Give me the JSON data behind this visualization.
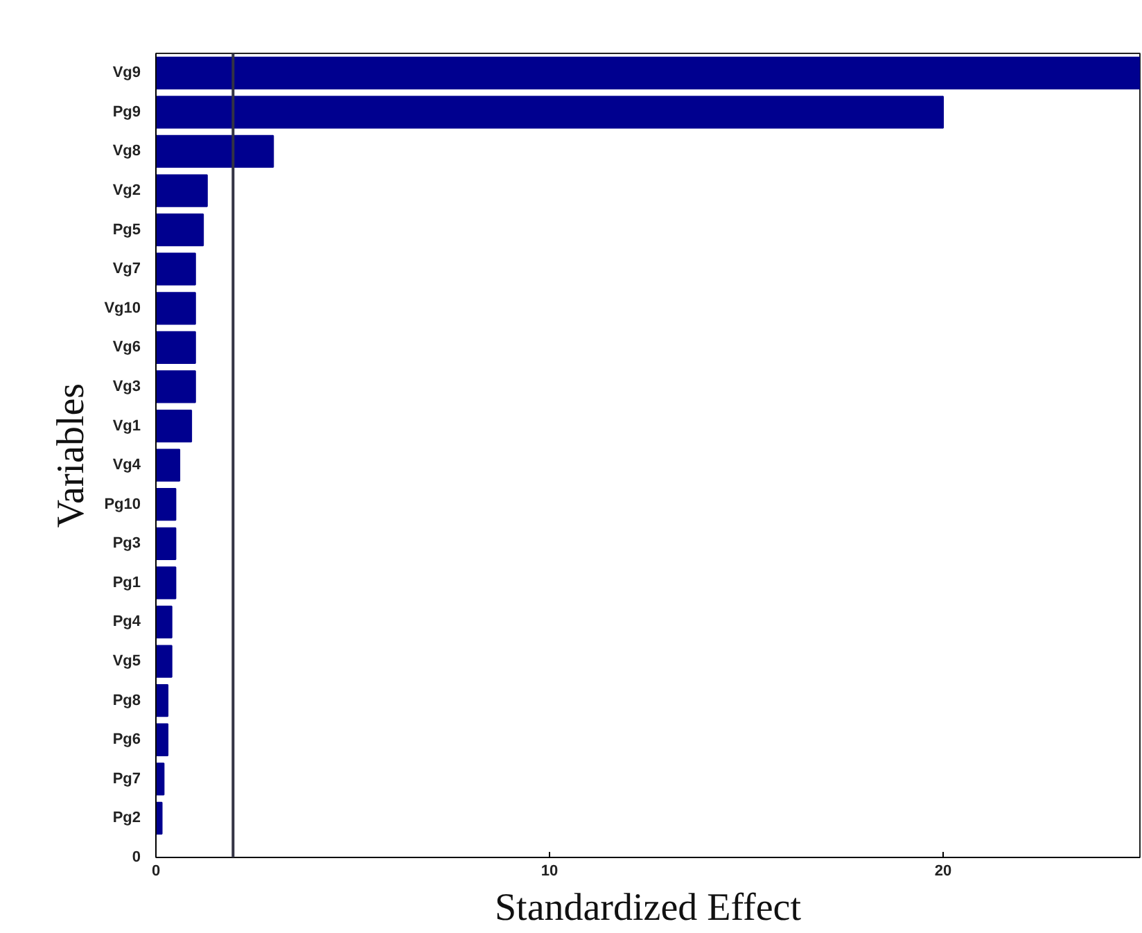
{
  "chart_data": {
    "type": "bar",
    "orientation": "horizontal",
    "xlabel": "Standardized Effect",
    "ylabel": "Variables",
    "categories": [
      "Vg9",
      "Pg9",
      "Vg8",
      "Vg2",
      "Pg5",
      "Vg7",
      "Vg10",
      "Vg6",
      "Vg3",
      "Vg1",
      "Vg4",
      "Pg10",
      "Pg3",
      "Pg1",
      "Pg4",
      "Vg5",
      "Pg8",
      "Pg6",
      "Pg7",
      "Pg2"
    ],
    "values": [
      25,
      20,
      2.98,
      1.3,
      1.2,
      1.0,
      1.0,
      1.0,
      1.0,
      0.9,
      0.6,
      0.5,
      0.5,
      0.5,
      0.4,
      0.4,
      0.3,
      0.3,
      0.2,
      0.15
    ],
    "color": "#00008f",
    "xlim": [
      0,
      25
    ],
    "xticks": [
      0,
      10,
      20
    ],
    "ref_lines": [
      {
        "axis": "x",
        "value": 1.96,
        "color": "#333344"
      }
    ],
    "annotations": [
      "0"
    ],
    "grid": false
  }
}
